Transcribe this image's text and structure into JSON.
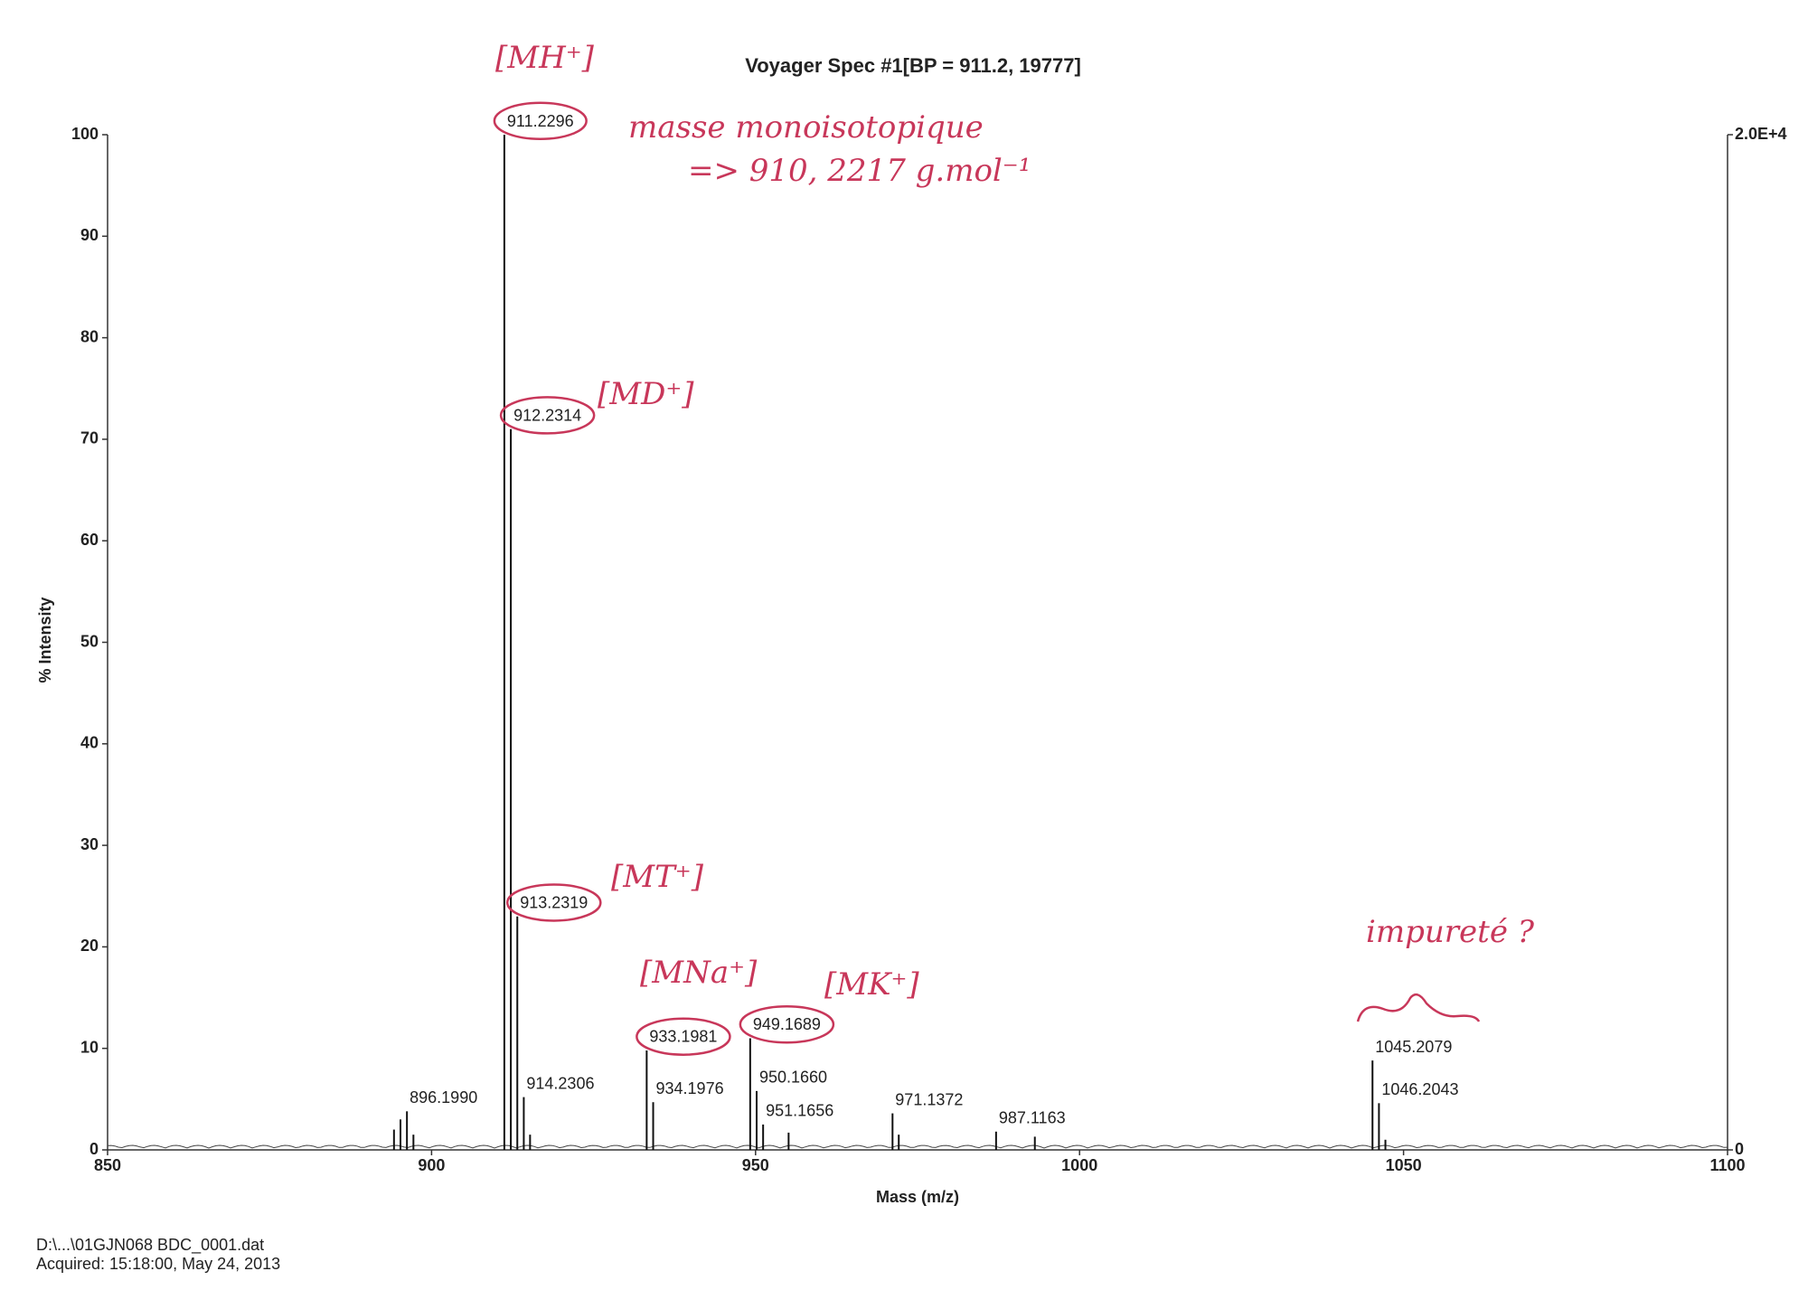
{
  "chart_data": {
    "type": "stem",
    "title": "Voyager Spec #1[BP = 911.2, 19777]",
    "x_label": "Mass (m/z)",
    "y_label": "% Intensity",
    "x": [
      894.2,
      895.2,
      896.199,
      897.2,
      911.2296,
      912.2314,
      913.2319,
      914.2306,
      915.2,
      933.1981,
      934.1976,
      949.1689,
      950.166,
      951.1656,
      955.1,
      971.1372,
      972.1,
      987.1163,
      993.1,
      1045.2079,
      1046.2043,
      1047.2
    ],
    "values": [
      2,
      3,
      3.8,
      1.5,
      100,
      71,
      23,
      5.2,
      1.5,
      9.8,
      4.7,
      11,
      5.8,
      2.5,
      1.7,
      3.6,
      1.5,
      1.8,
      1.3,
      8.8,
      4.6,
      1
    ],
    "peak_labels": [
      null,
      null,
      "896.1990",
      null,
      "911.2296",
      "912.2314",
      "913.2319",
      "914.2306",
      null,
      "933.1981",
      "934.1976",
      "949.1689",
      "950.1660",
      "951.1656",
      null,
      "971.1372",
      null,
      "987.1163",
      null,
      "1045.2079",
      "1046.2043",
      null
    ],
    "color": "#111111",
    "xlim": [
      850,
      1100
    ],
    "xticks": [
      850,
      900,
      950,
      1000,
      1050,
      1100
    ],
    "ylim": [
      0,
      100
    ],
    "yticks": [
      0,
      10,
      20,
      30,
      40,
      50,
      60,
      70,
      80,
      90,
      100
    ],
    "y2lim": [
      0,
      20000
    ],
    "y2ticks": [
      0,
      {
        "value": 20000,
        "label": "2.0E+4"
      }
    ],
    "grid": false
  },
  "annotations": [
    "[MH⁺]",
    "masse monoisotopique",
    "=> 910, 2217 g.mol⁻¹",
    "[MD⁺]",
    "[MT⁺]",
    "[MNa⁺]",
    "[MK⁺]",
    "impureté ?"
  ],
  "footer": {
    "file": "D:\\...\\01GJN068 BDC_0001.dat",
    "acquired": "Acquired: 15:18:00, May 24, 2013"
  }
}
